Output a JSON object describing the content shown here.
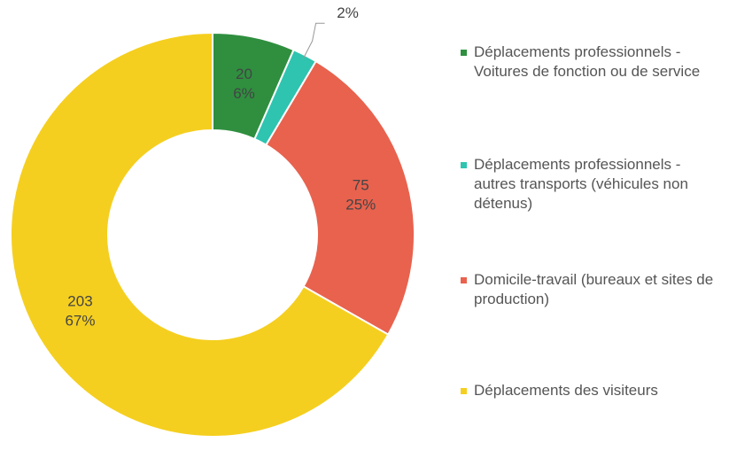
{
  "chart_data": {
    "type": "donut",
    "categories": [
      "Déplacements professionnels - Voitures de fonction ou de service",
      "Déplacements professionnels - autres transports (véhicules non détenus)",
      "Domicile-travail (bureaux et sites de production)",
      "Déplacements des visiteurs"
    ],
    "values": [
      20,
      6,
      75,
      203
    ],
    "percent_labels": [
      "6%",
      "2%",
      "25%",
      "67%"
    ],
    "colors": [
      "#2f8f3f",
      "#2ec4b0",
      "#e8624e",
      "#f5cf1f"
    ],
    "legend": "right"
  }
}
